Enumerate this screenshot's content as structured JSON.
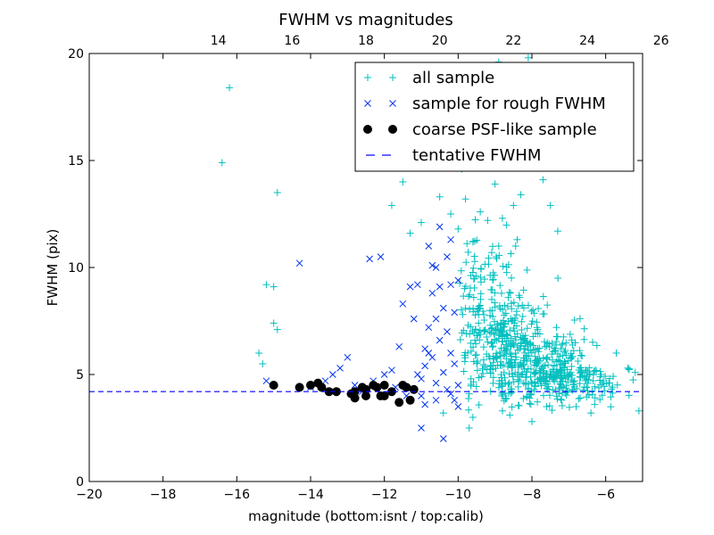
{
  "chart_data": {
    "type": "scatter",
    "title": "FWHM vs magnitudes",
    "xlabel": "magnitude (bottom:isnt / top:calib)",
    "ylabel": "FWHM (pix)",
    "xlim": [
      -20,
      -5
    ],
    "ylim": [
      0,
      20
    ],
    "x_ticks": [
      -20,
      -18,
      -16,
      -14,
      -12,
      -10,
      -8,
      -6
    ],
    "x_tick_labels": [
      "−20",
      "−18",
      "−16",
      "−14",
      "−12",
      "−10",
      "−8",
      "−6"
    ],
    "y_ticks": [
      0,
      5,
      10,
      15,
      20
    ],
    "y_tick_labels": [
      "0",
      "5",
      "10",
      "15",
      "20"
    ],
    "top_axis": {
      "label_offset": 30.5,
      "ticks": [
        14,
        16,
        18,
        20,
        22,
        24,
        26
      ],
      "tick_labels": [
        "14",
        "16",
        "18",
        "20",
        "22",
        "24",
        "26"
      ]
    },
    "grid": false,
    "legend_position": "upper-right",
    "series": [
      {
        "name": "all sample",
        "marker": "plus",
        "color": "#00bfbf",
        "points": [
          [
            -16.4,
            14.9
          ],
          [
            -16.2,
            18.4
          ],
          [
            -15.4,
            6.0
          ],
          [
            -15.3,
            5.5
          ],
          [
            -15.2,
            9.2
          ],
          [
            -15.0,
            9.1
          ],
          [
            -15.0,
            7.4
          ],
          [
            -14.9,
            7.1
          ],
          [
            -14.9,
            13.5
          ],
          [
            -11.8,
            12.9
          ],
          [
            -11.5,
            14.0
          ],
          [
            -11.3,
            11.6
          ],
          [
            -11.0,
            12.1
          ],
          [
            -10.6,
            15.9
          ],
          [
            -10.5,
            13.3
          ],
          [
            -10.4,
            17.9
          ],
          [
            -10.2,
            12.5
          ],
          [
            -10.0,
            11.8
          ],
          [
            -9.9,
            14.6
          ],
          [
            -9.8,
            13.2
          ],
          [
            -9.6,
            11.2
          ],
          [
            -9.5,
            15.1
          ],
          [
            -9.4,
            12.6
          ],
          [
            -9.3,
            16.0
          ],
          [
            -9.2,
            12.2
          ],
          [
            -9.0,
            13.9
          ],
          [
            -8.9,
            11.0
          ],
          [
            -8.8,
            12.3
          ],
          [
            -8.7,
            14.8
          ],
          [
            -8.5,
            12.9
          ],
          [
            -8.4,
            11.3
          ],
          [
            -8.3,
            13.4
          ],
          [
            -8.1,
            19.8
          ],
          [
            -8.0,
            15.5
          ],
          [
            -7.8,
            16.4
          ],
          [
            -7.7,
            14.1
          ],
          [
            -7.5,
            12.9
          ],
          [
            -7.3,
            11.7
          ],
          [
            -8.9,
            19.6
          ],
          [
            -9.1,
            18.2
          ],
          [
            -7.9,
            19.4
          ],
          [
            -9.7,
            2.5
          ],
          [
            -8.0,
            2.8
          ],
          [
            -8.6,
            3.1
          ],
          [
            -10.4,
            3.2
          ],
          [
            -9.6,
            3.0
          ],
          [
            -6.4,
            3.2
          ],
          [
            -5.1,
            3.3
          ],
          [
            -5.2,
            5.1
          ],
          [
            -5.4,
            5.3
          ],
          [
            -5.9,
            4.6
          ],
          [
            -6.3,
            3.6
          ],
          [
            -6.8,
            3.5
          ],
          [
            -7.2,
            3.8
          ],
          [
            -7.6,
            3.5
          ],
          [
            -8.8,
            3.3
          ]
        ],
        "cloud": {
          "count": 720,
          "seed": 7,
          "centers": [
            {
              "x": -8.6,
              "y": 6.4,
              "sx": 0.75,
              "sy": 1.3,
              "weight": 0.45
            },
            {
              "x": -7.5,
              "y": 5.1,
              "sx": 0.6,
              "sy": 0.75,
              "weight": 0.3
            },
            {
              "x": -9.3,
              "y": 8.3,
              "sx": 0.45,
              "sy": 1.6,
              "weight": 0.15
            },
            {
              "x": -6.4,
              "y": 4.6,
              "sx": 0.6,
              "sy": 0.45,
              "weight": 0.1
            }
          ],
          "xrange": [
            -10.0,
            -5.1
          ],
          "yrange": [
            3.2,
            13.2
          ]
        }
      },
      {
        "name": "sample for rough FWHM",
        "marker": "x",
        "color": "#0033ee",
        "points": [
          [
            -15.2,
            4.7
          ],
          [
            -14.3,
            10.2
          ],
          [
            -14.0,
            4.4
          ],
          [
            -13.6,
            4.7
          ],
          [
            -13.4,
            5.0
          ],
          [
            -13.2,
            5.3
          ],
          [
            -13.0,
            5.8
          ],
          [
            -12.8,
            4.5
          ],
          [
            -12.6,
            4.2
          ],
          [
            -12.4,
            10.4
          ],
          [
            -12.3,
            4.7
          ],
          [
            -12.1,
            10.5
          ],
          [
            -12.0,
            5.0
          ],
          [
            -11.8,
            5.2
          ],
          [
            -11.7,
            4.4
          ],
          [
            -11.6,
            6.3
          ],
          [
            -11.5,
            8.3
          ],
          [
            -11.4,
            4.0
          ],
          [
            -11.3,
            9.1
          ],
          [
            -11.2,
            7.6
          ],
          [
            -11.1,
            5.0
          ],
          [
            -11.0,
            4.8
          ],
          [
            -11.0,
            2.5
          ],
          [
            -10.9,
            5.4
          ],
          [
            -10.9,
            6.2
          ],
          [
            -10.8,
            7.2
          ],
          [
            -10.8,
            11.0
          ],
          [
            -10.7,
            8.8
          ],
          [
            -10.7,
            5.8
          ],
          [
            -10.7,
            10.1
          ],
          [
            -10.6,
            7.6
          ],
          [
            -10.6,
            4.6
          ],
          [
            -10.5,
            9.1
          ],
          [
            -10.5,
            6.6
          ],
          [
            -10.5,
            11.9
          ],
          [
            -10.4,
            5.1
          ],
          [
            -10.4,
            8.1
          ],
          [
            -10.4,
            2.0
          ],
          [
            -10.3,
            7.0
          ],
          [
            -10.3,
            10.5
          ],
          [
            -10.3,
            4.3
          ],
          [
            -10.2,
            11.3
          ],
          [
            -10.2,
            6.0
          ],
          [
            -10.2,
            9.2
          ],
          [
            -10.1,
            3.8
          ],
          [
            -10.1,
            7.9
          ],
          [
            -10.1,
            5.5
          ],
          [
            -10.0,
            4.5
          ],
          [
            -10.0,
            9.4
          ],
          [
            -10.0,
            3.5
          ],
          [
            -10.6,
            10.0
          ],
          [
            -10.8,
            6.0
          ],
          [
            -11.1,
            9.2
          ],
          [
            -10.9,
            3.6
          ],
          [
            -11.0,
            4.0
          ],
          [
            -10.2,
            4.1
          ],
          [
            -10.6,
            3.8
          ]
        ]
      },
      {
        "name": "coarse PSF-like sample",
        "marker": "circle",
        "color": "#000000",
        "points": [
          [
            -15.0,
            4.5
          ],
          [
            -14.3,
            4.4
          ],
          [
            -14.0,
            4.5
          ],
          [
            -13.8,
            4.6
          ],
          [
            -13.7,
            4.4
          ],
          [
            -13.5,
            4.2
          ],
          [
            -13.3,
            4.2
          ],
          [
            -12.9,
            4.1
          ],
          [
            -12.8,
            4.2
          ],
          [
            -12.8,
            3.9
          ],
          [
            -12.6,
            4.4
          ],
          [
            -12.5,
            4.0
          ],
          [
            -12.5,
            4.3
          ],
          [
            -12.3,
            4.5
          ],
          [
            -12.2,
            4.4
          ],
          [
            -12.1,
            4.0
          ],
          [
            -12.0,
            4.5
          ],
          [
            -12.0,
            4.0
          ],
          [
            -11.8,
            4.2
          ],
          [
            -11.6,
            3.7
          ],
          [
            -11.5,
            4.5
          ],
          [
            -11.4,
            4.4
          ],
          [
            -11.3,
            3.8
          ],
          [
            -11.2,
            4.3
          ]
        ]
      }
    ],
    "hlines": [
      {
        "name": "tentative FWHM",
        "y": 4.2,
        "color": "#0000ff",
        "style": "dashed"
      }
    ]
  }
}
